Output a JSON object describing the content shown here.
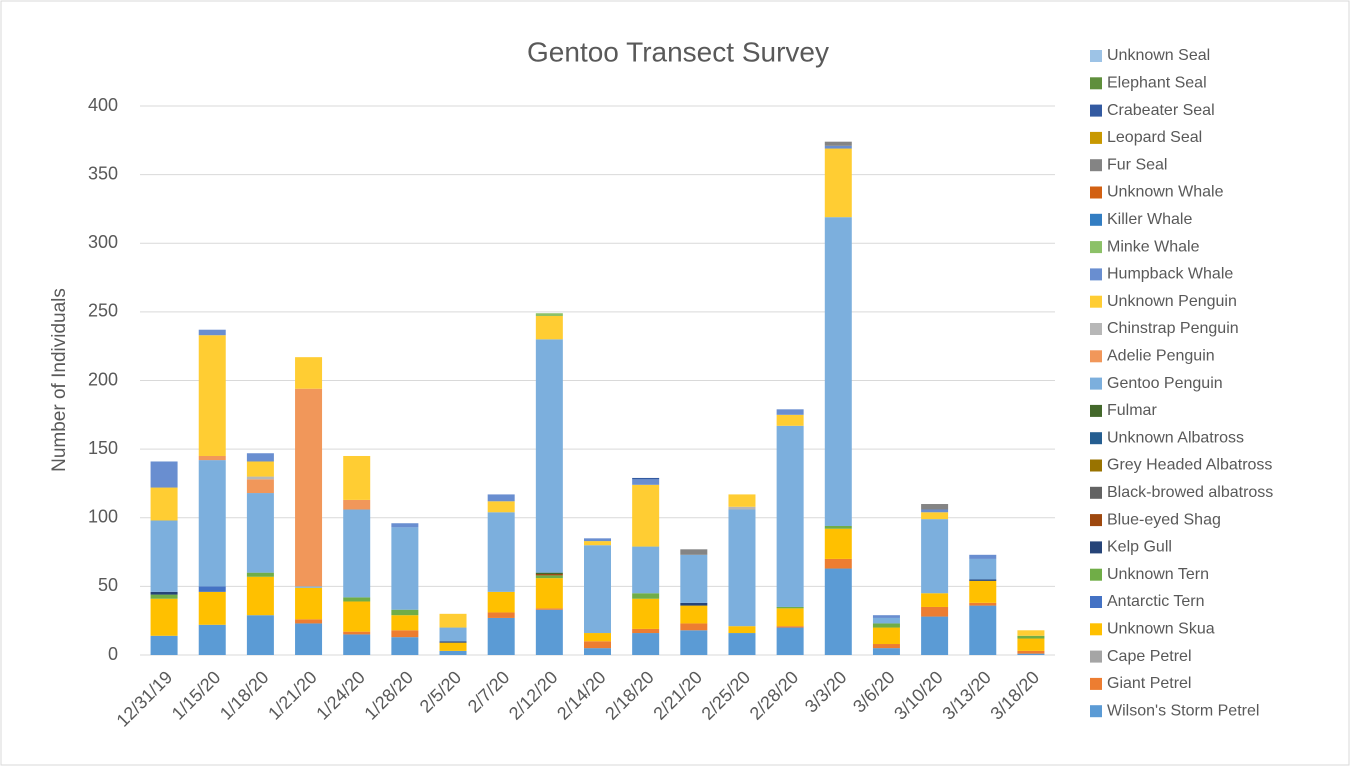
{
  "chart_data": {
    "type": "bar",
    "stacked": true,
    "title": "Gentoo Transect Survey",
    "y_label": "Number of Individuals",
    "categories": [
      "12/31/19",
      "1/15/20",
      "1/18/20",
      "1/21/20",
      "1/24/20",
      "1/28/20",
      "2/5/20",
      "2/7/20",
      "2/12/20",
      "2/14/20",
      "2/18/20",
      "2/21/20",
      "2/25/20",
      "2/28/20",
      "3/3/20",
      "3/6/20",
      "3/10/20",
      "3/13/20",
      "3/18/20"
    ],
    "ylim": [
      0,
      400
    ],
    "yticks": [
      0,
      50,
      100,
      150,
      200,
      250,
      300,
      350,
      400
    ],
    "grid": true,
    "legend": "right",
    "series": [
      {
        "name": "Wilson's Storm Petrel",
        "color": "#5b9bd5",
        "values": [
          14,
          22,
          29,
          23,
          15,
          13,
          3,
          27,
          33,
          5,
          16,
          18,
          16,
          20,
          63,
          5,
          28,
          36,
          1
        ]
      },
      {
        "name": "Giant Petrel",
        "color": "#ed7d31",
        "values": [
          0,
          0,
          0,
          3,
          2,
          5,
          0,
          4,
          1,
          5,
          3,
          5,
          0,
          1,
          7,
          3,
          7,
          2,
          2
        ]
      },
      {
        "name": "Cape Petrel",
        "color": "#a5a5a5",
        "values": [
          0,
          0,
          0,
          0,
          0,
          0,
          0,
          0,
          0,
          0,
          0,
          0,
          0,
          0,
          0,
          0,
          0,
          0,
          0
        ]
      },
      {
        "name": "Unknown Skua",
        "color": "#ffc000",
        "values": [
          27,
          24,
          28,
          23,
          22,
          11,
          6,
          15,
          22,
          6,
          22,
          13,
          5,
          13,
          22,
          12,
          10,
          16,
          9
        ]
      },
      {
        "name": "Antarctic Tern",
        "color": "#4472c4",
        "values": [
          0,
          4,
          0,
          0,
          0,
          0,
          0,
          0,
          0,
          0,
          0,
          0,
          0,
          0,
          0,
          0,
          0,
          0,
          0
        ]
      },
      {
        "name": "Unknown Tern",
        "color": "#70ad47",
        "values": [
          3,
          0,
          3,
          0,
          3,
          4,
          0,
          0,
          2,
          0,
          4,
          0,
          0,
          1,
          2,
          3,
          0,
          0,
          2
        ]
      },
      {
        "name": "Kelp Gull",
        "color": "#264478",
        "values": [
          2,
          0,
          0,
          0,
          0,
          0,
          1,
          0,
          0,
          0,
          0,
          2,
          0,
          0,
          0,
          0,
          0,
          1,
          0
        ]
      },
      {
        "name": "Blue-eyed Shag",
        "color": "#9e480e",
        "values": [
          0,
          0,
          0,
          0,
          0,
          0,
          0,
          0,
          1,
          0,
          0,
          0,
          0,
          0,
          0,
          0,
          0,
          0,
          0
        ]
      },
      {
        "name": "Black-browed albatross",
        "color": "#636363",
        "values": [
          0,
          0,
          0,
          0,
          0,
          0,
          0,
          0,
          0,
          0,
          0,
          0,
          0,
          0,
          0,
          0,
          0,
          0,
          0
        ]
      },
      {
        "name": "Grey Headed Albatross",
        "color": "#997300",
        "values": [
          0,
          0,
          0,
          0,
          0,
          0,
          0,
          0,
          0,
          0,
          0,
          0,
          0,
          0,
          0,
          0,
          0,
          0,
          0
        ]
      },
      {
        "name": "Unknown Albatross",
        "color": "#255e91",
        "values": [
          0,
          0,
          0,
          0,
          0,
          0,
          0,
          0,
          0,
          0,
          0,
          0,
          0,
          0,
          0,
          0,
          0,
          0,
          0
        ]
      },
      {
        "name": "Fulmar",
        "color": "#43682b",
        "values": [
          0,
          0,
          0,
          0,
          0,
          0,
          0,
          0,
          1,
          0,
          0,
          0,
          0,
          0,
          0,
          0,
          0,
          0,
          0
        ]
      },
      {
        "name": "Gentoo Penguin",
        "color": "#7cafdd",
        "values": [
          52,
          92,
          58,
          1,
          64,
          60,
          10,
          58,
          170,
          64,
          34,
          35,
          85,
          132,
          225,
          4,
          54,
          15,
          0
        ]
      },
      {
        "name": "Adelie Penguin",
        "color": "#f1975a",
        "values": [
          0,
          3,
          10,
          144,
          7,
          0,
          0,
          0,
          0,
          0,
          0,
          0,
          0,
          0,
          0,
          0,
          0,
          0,
          0
        ]
      },
      {
        "name": "Chinstrap Penguin",
        "color": "#b7b7b7",
        "values": [
          0,
          0,
          2,
          0,
          0,
          0,
          0,
          0,
          0,
          0,
          0,
          0,
          2,
          0,
          0,
          0,
          0,
          0,
          0
        ]
      },
      {
        "name": "Unknown Penguin",
        "color": "#ffcd33",
        "values": [
          24,
          88,
          11,
          23,
          32,
          0,
          10,
          8,
          17,
          3,
          45,
          0,
          9,
          8,
          50,
          0,
          5,
          0,
          4
        ]
      },
      {
        "name": "Humpback Whale",
        "color": "#698ed0",
        "values": [
          19,
          4,
          6,
          0,
          0,
          3,
          0,
          5,
          0,
          2,
          4,
          0,
          0,
          4,
          2,
          2,
          2,
          3,
          0
        ]
      },
      {
        "name": "Minke Whale",
        "color": "#8cc168",
        "values": [
          0,
          0,
          0,
          0,
          0,
          0,
          0,
          0,
          2,
          0,
          0,
          0,
          0,
          0,
          0,
          0,
          0,
          0,
          0
        ]
      },
      {
        "name": "Killer Whale",
        "color": "#327dc2",
        "values": [
          0,
          0,
          0,
          0,
          0,
          0,
          0,
          0,
          0,
          0,
          0,
          0,
          0,
          0,
          0,
          0,
          0,
          0,
          0
        ]
      },
      {
        "name": "Unknown Whale",
        "color": "#d26012",
        "values": [
          0,
          0,
          0,
          0,
          0,
          0,
          0,
          0,
          0,
          0,
          0,
          0,
          0,
          0,
          0,
          0,
          0,
          0,
          0
        ]
      },
      {
        "name": "Fur Seal",
        "color": "#848484",
        "values": [
          0,
          0,
          0,
          0,
          0,
          0,
          0,
          0,
          0,
          0,
          0,
          4,
          0,
          0,
          3,
          0,
          4,
          0,
          0
        ]
      },
      {
        "name": "Leopard Seal",
        "color": "#c89800",
        "values": [
          0,
          0,
          0,
          0,
          0,
          0,
          0,
          0,
          0,
          0,
          0,
          0,
          0,
          0,
          0,
          0,
          0,
          0,
          0
        ]
      },
      {
        "name": "Crabeater Seal",
        "color": "#335aa1",
        "values": [
          0,
          0,
          0,
          0,
          0,
          0,
          0,
          0,
          0,
          0,
          1,
          0,
          0,
          0,
          0,
          0,
          0,
          0,
          0
        ]
      },
      {
        "name": "Elephant Seal",
        "color": "#5f8f3c",
        "values": [
          0,
          0,
          0,
          0,
          0,
          0,
          0,
          0,
          0,
          0,
          0,
          0,
          0,
          0,
          0,
          0,
          0,
          0,
          0
        ]
      },
      {
        "name": "Unknown Seal",
        "color": "#9dc3e6",
        "values": [
          0,
          0,
          0,
          0,
          0,
          0,
          0,
          0,
          0,
          0,
          0,
          0,
          0,
          0,
          0,
          0,
          0,
          0,
          0
        ]
      }
    ]
  }
}
